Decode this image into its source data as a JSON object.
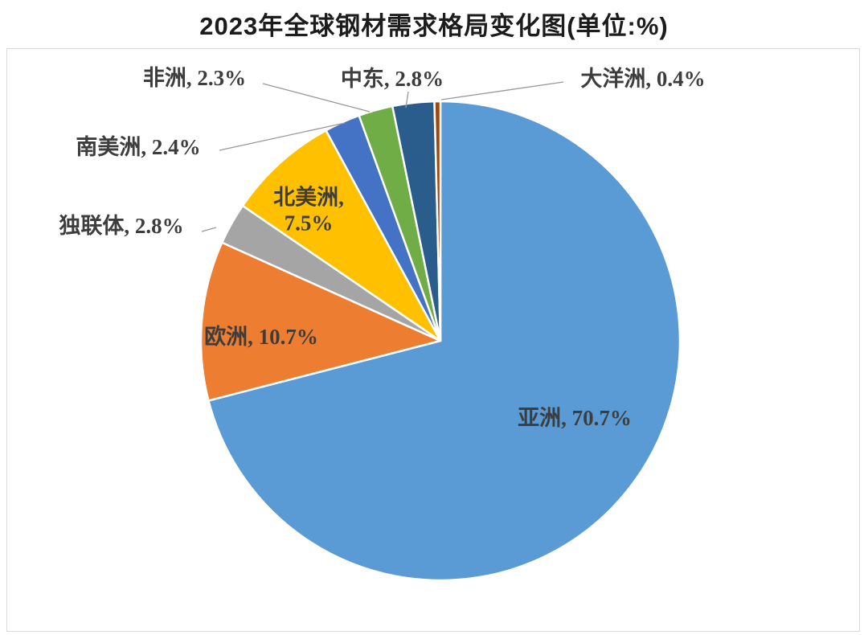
{
  "title": "2023年全球钢材需求格局变化图(单位:%)",
  "chart_data": {
    "type": "pie",
    "title": "2023年全球钢材需求格局变化图(单位:%)",
    "unit": "%",
    "start_angle_deg": 0,
    "direction": "clockwise",
    "legend_position": "none",
    "label_style": "category-name-and-percent, outside with leader lines for small slices",
    "slices": [
      {
        "key": "asia",
        "label": "亚洲",
        "value": 70.7,
        "display": "亚洲, 70.7%",
        "color": "#5B9BD5",
        "label_placement": "inside"
      },
      {
        "key": "europe",
        "label": "欧洲",
        "value": 10.7,
        "display": "欧洲, 10.7%",
        "color": "#ED7D31",
        "label_placement": "inside"
      },
      {
        "key": "cis",
        "label": "独联体",
        "value": 2.8,
        "display": "独联体, 2.8%",
        "color": "#A5A5A5",
        "label_placement": "outside"
      },
      {
        "key": "north-america",
        "label": "北美洲",
        "value": 7.5,
        "display": "北美洲, 7.5%",
        "color": "#FFC000",
        "label_placement": "inside"
      },
      {
        "key": "south-america",
        "label": "南美洲",
        "value": 2.4,
        "display": "南美洲, 2.4%",
        "color": "#4472C4",
        "label_placement": "outside"
      },
      {
        "key": "africa",
        "label": "非洲",
        "value": 2.3,
        "display": "非洲, 2.3%",
        "color": "#70AD47",
        "label_placement": "outside"
      },
      {
        "key": "middle-east",
        "label": "中东",
        "value": 2.8,
        "display": "中东, 2.8%",
        "color": "#2B5D8C",
        "label_placement": "outside"
      },
      {
        "key": "oceania",
        "label": "大洋洲",
        "value": 0.4,
        "display": "大洋洲, 0.4%",
        "color": "#9E480E",
        "label_placement": "outside"
      }
    ],
    "colors": {
      "label_text": "#3d3d3d",
      "leader_line": "#999999",
      "slice_separator": "#ffffff",
      "title_text": "#1c1c1c",
      "panel_border": "#dadada"
    }
  }
}
